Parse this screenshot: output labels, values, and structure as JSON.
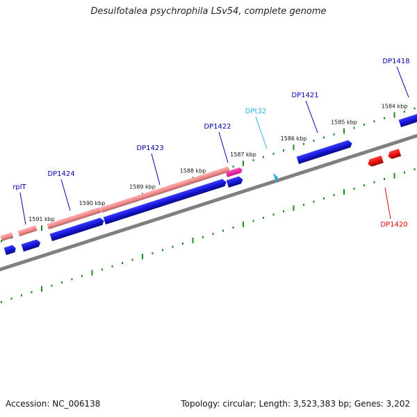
{
  "title": "Desulfotalea psychrophila LSv54, complete genome",
  "footer": {
    "accession": "Accession: NC_006138",
    "summary": "Topology: circular; Length: 3,523,383 bp; Genes: 3,202"
  },
  "colors": {
    "backbone": "#808080",
    "tick": "#1a8a1a",
    "gene_forward": "#1414d2",
    "gene_forward_dark": "#0a0a80",
    "rna_forward": "#f08a8a",
    "rna_forward_dark": "#a05050",
    "gene_reverse": "#e81010",
    "gene_reverse_dark": "#900808",
    "highlight": "#ee2299",
    "label_blue": "#0000aa",
    "label_cyan": "#2ab0e0",
    "label_red": "#dd0000"
  },
  "scale_labels": [
    {
      "text": "1591 kbp",
      "kbp": 1591
    },
    {
      "text": "1590 kbp",
      "kbp": 1590
    },
    {
      "text": "1589 kbp",
      "kbp": 1589
    },
    {
      "text": "1588 kbp",
      "kbp": 1588
    },
    {
      "text": "1587 kbp",
      "kbp": 1587
    },
    {
      "text": "1586 kbp",
      "kbp": 1586
    },
    {
      "text": "1585 kbp",
      "kbp": 1585
    },
    {
      "text": "1584 kbp",
      "kbp": 1584
    }
  ],
  "gene_labels": [
    {
      "text": "rplT",
      "color": "label_blue"
    },
    {
      "text": "DP1424",
      "color": "label_blue"
    },
    {
      "text": "DP1423",
      "color": "label_blue"
    },
    {
      "text": "DP1422",
      "color": "label_blue"
    },
    {
      "text": "DPt32",
      "color": "label_cyan"
    },
    {
      "text": "DP1421",
      "color": "label_blue"
    },
    {
      "text": "DP1418",
      "color": "label_blue"
    },
    {
      "text": "DP1420",
      "color": "label_red"
    }
  ]
}
